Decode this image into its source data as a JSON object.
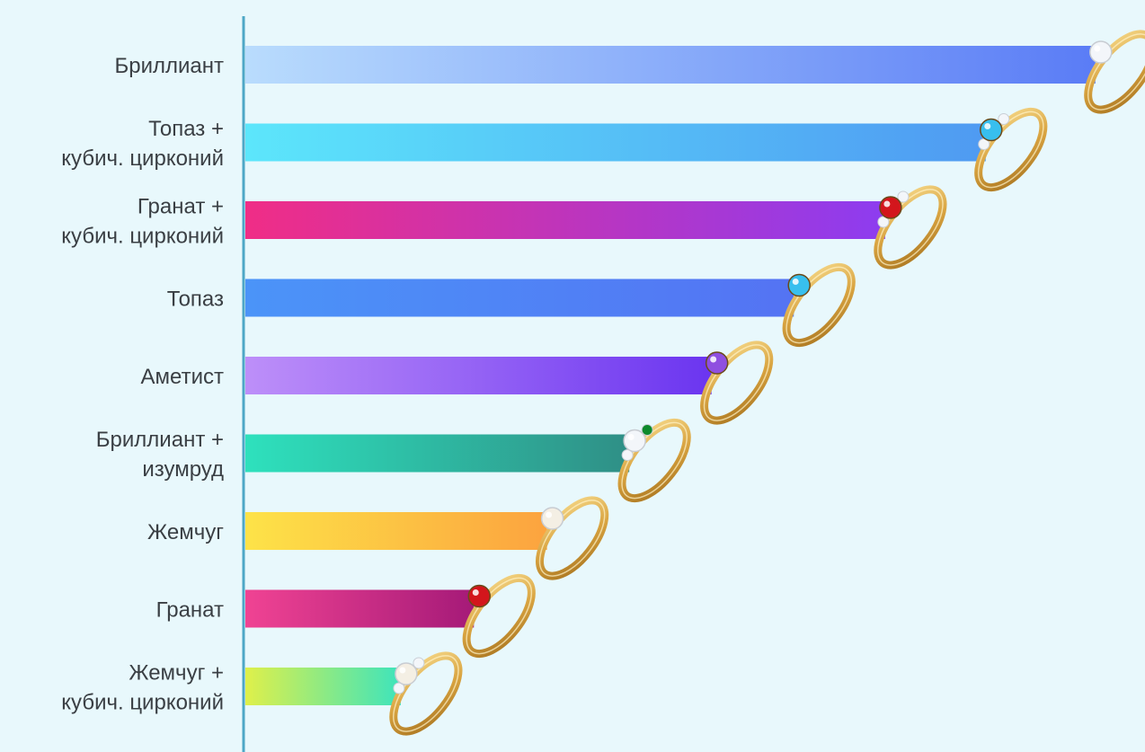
{
  "chart_data": {
    "type": "bar",
    "orientation": "horizontal",
    "title": "",
    "xlabel": "",
    "ylabel": "",
    "grid": false,
    "legend": "none",
    "xlim": [
      0,
      100
    ],
    "categories": [
      [
        "Бриллиант"
      ],
      [
        "Топаз +",
        "кубич. цирконий"
      ],
      [
        "Гранат +",
        "кубич. цирконий"
      ],
      [
        "Топаз"
      ],
      [
        "Аметист"
      ],
      [
        "Бриллиант +",
        "изумруд"
      ],
      [
        "Жемчуг"
      ],
      [
        "Гранат"
      ],
      [
        "Жемчуг +",
        "кубич. цирконий"
      ]
    ],
    "values": [
      93,
      81,
      70,
      60,
      51,
      42,
      33,
      25,
      17
    ],
    "bar_gradients": [
      [
        "#b9dcfd",
        "#5a7cf6"
      ],
      [
        "#5ce6fb",
        "#4f9af2"
      ],
      [
        "#f02d86",
        "#8d3cf0"
      ],
      [
        "#4b94f8",
        "#5473f3"
      ],
      [
        "#bd8ff9",
        "#6b35f0"
      ],
      [
        "#2ee1bd",
        "#2f8f86"
      ],
      [
        "#fde348",
        "#fca33f"
      ],
      [
        "#f04393",
        "#a51a78"
      ],
      [
        "#dff04a",
        "#3de4bc"
      ]
    ],
    "ring_stones": [
      "diamond",
      "topaz-zirconia",
      "garnet-zirconia",
      "topaz",
      "amethyst",
      "diamond-emerald",
      "pearl",
      "garnet",
      "pearl-zirconia"
    ],
    "colors": {
      "background": "#e8f8fc",
      "axis": "#4ea7c6",
      "label_text": "#3a3f44",
      "ring_gold": "#d9a441"
    }
  }
}
